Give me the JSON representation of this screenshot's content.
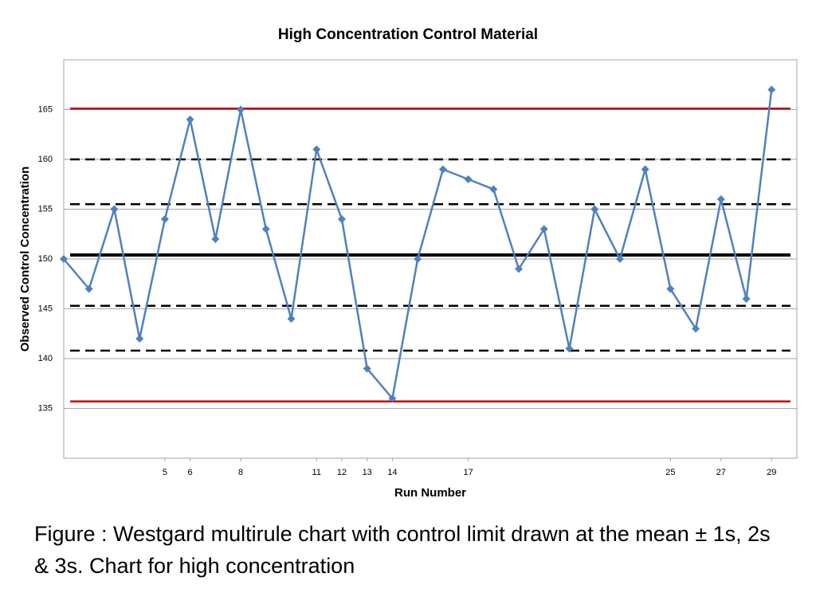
{
  "chart_data": {
    "type": "line",
    "title": "High Concentration Control Material",
    "xlabel": "Run Number",
    "ylabel": "Observed Control Concentration",
    "x": [
      1,
      2,
      3,
      4,
      5,
      6,
      7,
      8,
      9,
      10,
      11,
      12,
      13,
      14,
      15,
      16,
      17,
      18,
      19,
      20,
      21,
      22,
      23,
      24,
      25,
      26,
      27,
      28,
      29
    ],
    "series": [
      {
        "color": "#4f81bd",
        "values": [
          150,
          147,
          155,
          142,
          154,
          164,
          152,
          165,
          153,
          144,
          161,
          154,
          139,
          136,
          150,
          159,
          158,
          157,
          149,
          153,
          141,
          155,
          150,
          159,
          147,
          143,
          156,
          146,
          167
        ]
      }
    ],
    "xlim": [
      1,
      30
    ],
    "xticks": [
      5,
      6,
      8,
      11,
      12,
      13,
      14,
      17,
      25,
      27,
      29
    ],
    "ylim": [
      130,
      170
    ],
    "yticks": [
      135,
      140,
      145,
      150,
      155,
      160,
      165
    ],
    "grid": true,
    "reference_lines": [
      {
        "value": 150.4,
        "color": "#000000",
        "style": "solid"
      },
      {
        "value": 155.5,
        "color": "#000000",
        "style": "dashed"
      },
      {
        "value": 145.3,
        "color": "#000000",
        "style": "dashed"
      },
      {
        "value": 160.0,
        "color": "#000000",
        "style": "dashed"
      },
      {
        "value": 140.8,
        "color": "#000000",
        "style": "dashed"
      },
      {
        "value": 165.1,
        "color": "#c00000",
        "style": "solid"
      },
      {
        "value": 135.7,
        "color": "#c00000",
        "style": "solid"
      }
    ]
  },
  "caption": "Figure : Westgard multirule chart with control limit drawn at the mean ± 1s, 2s & 3s. Chart for high concentration"
}
